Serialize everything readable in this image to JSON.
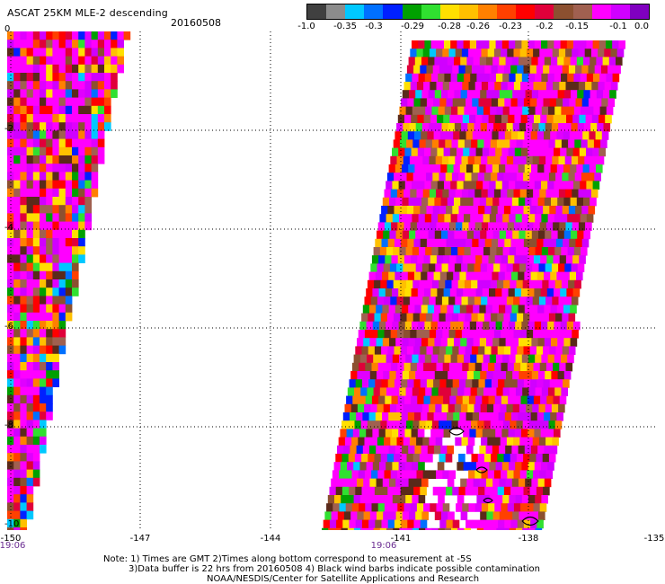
{
  "header": {
    "title": "ASCAT 25KM MLE-2 descending",
    "date": "20160508"
  },
  "colorbar": {
    "colors": [
      "#404040",
      "#8c8c8c",
      "#00c8ff",
      "#0070ff",
      "#0020ff",
      "#00a000",
      "#30e030",
      "#ffe000",
      "#ffc000",
      "#ff8000",
      "#ff4000",
      "#ff0000",
      "#e0003a",
      "#8c5030",
      "#a06050",
      "#ff00ff",
      "#d000ff",
      "#8000c0"
    ],
    "labels": [
      "-1.0",
      "-0.35",
      "-0.3",
      "-0.29",
      "-0.28",
      "-0.26",
      "-0.23",
      "-0.2",
      "-0.15",
      "-0.1",
      "0.0"
    ]
  },
  "axes": {
    "x_ticks": [
      "-150",
      "-147",
      "-144",
      "-141",
      "-138",
      "-135"
    ],
    "y_ticks": [
      "0",
      "-2",
      "-4",
      "-6",
      "-8",
      "-10"
    ],
    "time_labels": [
      "19:06",
      "19:06"
    ]
  },
  "notes": {
    "line1": "Note: 1) Times are GMT 2)Times along bottom correspond to measurement at -5S",
    "line2": "3)Data buffer is 22 hrs from 20160508 4) Black wind barbs indicate possible contamination",
    "line3": "NOAA/NESDIS/Center for Satellite Applications and Research"
  }
}
